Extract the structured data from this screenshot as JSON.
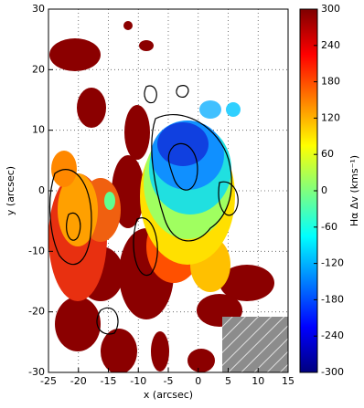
{
  "chart_data": {
    "type": "heatmap",
    "xlabel": "x (arcsec)",
    "ylabel": "y (arcsec)",
    "xlim": [
      -25,
      15
    ],
    "ylim": [
      -30,
      30
    ],
    "xticks": [
      -25,
      -20,
      -15,
      -10,
      -5,
      0,
      5,
      10,
      15
    ],
    "yticks": [
      -30,
      -20,
      -10,
      0,
      10,
      20,
      30
    ],
    "grid": true,
    "colorbar": {
      "label": "Hα Δv (kms⁻¹)",
      "lim": [
        -300,
        300
      ],
      "ticks": [
        -300,
        -240,
        -180,
        -120,
        -60,
        0,
        60,
        120,
        180,
        240,
        300
      ],
      "colormap": "jet"
    }
  }
}
